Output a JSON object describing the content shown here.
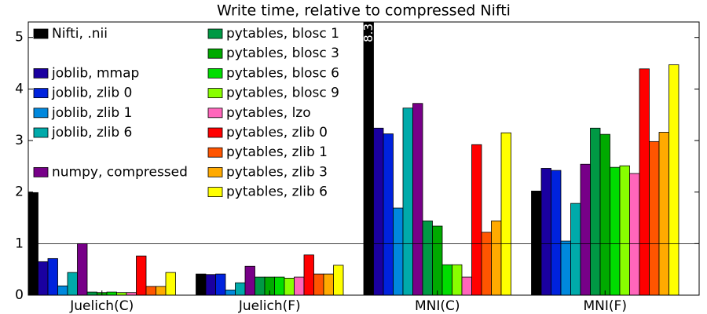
{
  "chart_data": {
    "type": "bar",
    "title": "Write time, relative to compressed Nifti",
    "categories": [
      "Juelich(C)",
      "Juelich(F)",
      "MNI(C)",
      "MNI(F)"
    ],
    "ylim": [
      0,
      5.3
    ],
    "yticks": [
      0,
      1,
      2,
      3,
      4,
      5
    ],
    "hline": 1,
    "series": [
      {
        "name": "Nifti, .nii",
        "color": "#000000",
        "values": [
          1.99,
          0.41,
          8.3,
          2.02
        ],
        "value_labels": [
          null,
          null,
          "8.3",
          null
        ]
      },
      {
        "name": "joblib, mmap",
        "color": "#1a00a0",
        "values": [
          0.65,
          0.4,
          3.24,
          2.46
        ]
      },
      {
        "name": "joblib, zlib 0",
        "color": "#0022dd",
        "values": [
          0.71,
          0.41,
          3.13,
          2.42
        ]
      },
      {
        "name": "joblib, zlib 1",
        "color": "#0088dd",
        "values": [
          0.18,
          0.1,
          1.69,
          1.05
        ]
      },
      {
        "name": "joblib, zlib 6",
        "color": "#00aaaa",
        "values": [
          0.44,
          0.24,
          3.63,
          1.78
        ]
      },
      {
        "name": "numpy, compressed",
        "color": "#770088",
        "values": [
          1.0,
          0.56,
          3.72,
          2.54
        ]
      },
      {
        "name": "pytables, blosc 1",
        "color": "#009944",
        "values": [
          0.06,
          0.35,
          1.44,
          3.24
        ]
      },
      {
        "name": "pytables, blosc 3",
        "color": "#00aa00",
        "values": [
          0.05,
          0.35,
          1.34,
          3.12
        ]
      },
      {
        "name": "pytables, blosc 6",
        "color": "#00dd00",
        "values": [
          0.06,
          0.35,
          0.59,
          2.48
        ]
      },
      {
        "name": "pytables, blosc 9",
        "color": "#88ff00",
        "values": [
          0.05,
          0.33,
          0.59,
          2.51
        ]
      },
      {
        "name": "pytables, lzo",
        "color": "#ff66bb",
        "values": [
          0.05,
          0.35,
          0.35,
          2.36
        ]
      },
      {
        "name": "pytables, zlib 0",
        "color": "#ff0000",
        "values": [
          0.76,
          0.78,
          2.92,
          4.39
        ]
      },
      {
        "name": "pytables, zlib 1",
        "color": "#ff5500",
        "values": [
          0.17,
          0.41,
          1.22,
          2.98
        ]
      },
      {
        "name": "pytables, zlib 3",
        "color": "#ffaa00",
        "values": [
          0.17,
          0.41,
          1.44,
          3.16
        ]
      },
      {
        "name": "pytables, zlib 6",
        "color": "#ffff00",
        "values": [
          0.44,
          0.58,
          3.15,
          4.47
        ]
      }
    ]
  }
}
